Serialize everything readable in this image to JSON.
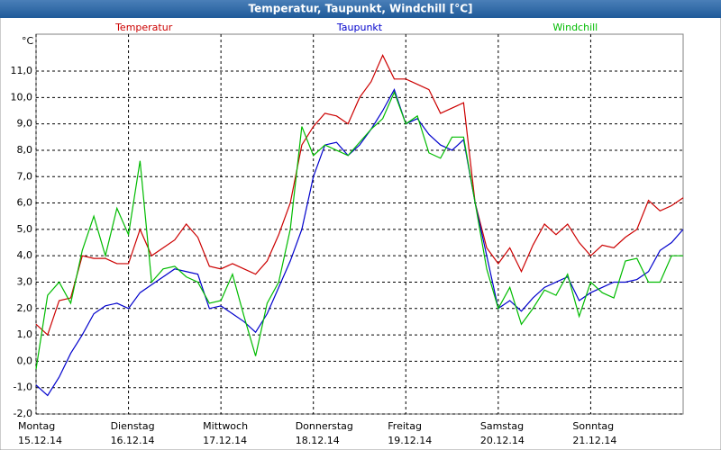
{
  "chart_data": {
    "type": "line",
    "title": "Temperatur, Taupunkt, Windchill [°C]",
    "y_label": "°C",
    "x": [
      0,
      3,
      6,
      9,
      12,
      15,
      18,
      21,
      24,
      27,
      30,
      33,
      36,
      39,
      42,
      45,
      48,
      51,
      54,
      57,
      60,
      63,
      66,
      69,
      72,
      75,
      78,
      81,
      84,
      87,
      90,
      93,
      96,
      99,
      102,
      105,
      108,
      111,
      114,
      117,
      120,
      123,
      126,
      129,
      132,
      135,
      138,
      141,
      144,
      147,
      150,
      153,
      156,
      159,
      162,
      165,
      168
    ],
    "xlim": [
      0,
      168
    ],
    "xticks": [
      {
        "value": 0,
        "label": "Montag",
        "date": "15.12.14"
      },
      {
        "value": 24,
        "label": "Dienstag",
        "date": "16.12.14"
      },
      {
        "value": 48,
        "label": "Mittwoch",
        "date": "17.12.14"
      },
      {
        "value": 72,
        "label": "Donnerstag",
        "date": "18.12.14"
      },
      {
        "value": 96,
        "label": "Freitag",
        "date": "19.12.14"
      },
      {
        "value": 120,
        "label": "Samstag",
        "date": "20.12.14"
      },
      {
        "value": 144,
        "label": "Sonntag",
        "date": "21.12.14"
      }
    ],
    "ylim": [
      -2,
      12.4
    ],
    "yticks": [
      {
        "value": -2,
        "label": "-2,0"
      },
      {
        "value": -1,
        "label": "-1,0"
      },
      {
        "value": 0,
        "label": "0,0"
      },
      {
        "value": 1,
        "label": "1,0"
      },
      {
        "value": 2,
        "label": "2,0"
      },
      {
        "value": 3,
        "label": "3,0"
      },
      {
        "value": 4,
        "label": "4,0"
      },
      {
        "value": 5,
        "label": "5,0"
      },
      {
        "value": 6,
        "label": "6,0"
      },
      {
        "value": 7,
        "label": "7,0"
      },
      {
        "value": 8,
        "label": "8,0"
      },
      {
        "value": 9,
        "label": "9,0"
      },
      {
        "value": 10,
        "label": "10,0"
      },
      {
        "value": 11,
        "label": "11,0"
      }
    ],
    "grid": true,
    "series": [
      {
        "name": "Temperatur",
        "color": "#cc0000",
        "values": [
          1.4,
          1.0,
          2.3,
          2.4,
          4.0,
          3.9,
          3.9,
          3.7,
          3.7,
          5.0,
          4.0,
          4.3,
          4.6,
          5.2,
          4.7,
          3.6,
          3.5,
          3.7,
          3.5,
          3.3,
          3.8,
          4.8,
          6.0,
          8.2,
          8.9,
          9.4,
          9.3,
          9.0,
          10.0,
          10.6,
          11.6,
          10.7,
          10.7,
          10.5,
          10.3,
          9.4,
          9.6,
          9.8,
          6.0,
          4.3,
          3.7,
          4.3,
          3.4,
          4.4,
          5.2,
          4.8,
          5.2,
          4.5,
          4.0,
          4.4,
          4.3,
          4.7,
          5.0,
          6.1,
          5.7,
          5.9,
          6.2
        ]
      },
      {
        "name": "Taupunkt",
        "color": "#0000cc",
        "values": [
          -0.9,
          -1.3,
          -0.6,
          0.3,
          1.0,
          1.8,
          2.1,
          2.2,
          2.0,
          2.6,
          2.9,
          3.2,
          3.5,
          3.4,
          3.3,
          2.0,
          2.1,
          1.8,
          1.5,
          1.1,
          1.8,
          2.8,
          3.8,
          5.0,
          7.0,
          8.2,
          8.3,
          7.8,
          8.2,
          8.8,
          9.5,
          10.3,
          9.0,
          9.2,
          8.6,
          8.2,
          8.0,
          8.4,
          6.0,
          4.0,
          2.0,
          2.3,
          1.9,
          2.4,
          2.8,
          3.0,
          3.2,
          2.3,
          2.6,
          2.8,
          3.0,
          3.0,
          3.1,
          3.4,
          4.2,
          4.5,
          5.0
        ]
      },
      {
        "name": "Windchill",
        "color": "#00bb00",
        "values": [
          -0.3,
          2.5,
          3.0,
          2.2,
          4.2,
          5.5,
          4.0,
          5.8,
          4.8,
          7.6,
          3.0,
          3.5,
          3.6,
          3.2,
          3.0,
          2.2,
          2.3,
          3.3,
          1.7,
          0.2,
          2.2,
          3.0,
          5.0,
          8.9,
          7.8,
          8.2,
          8.0,
          7.8,
          8.3,
          8.8,
          9.2,
          10.2,
          9.0,
          9.3,
          7.9,
          7.7,
          8.5,
          8.5,
          6.0,
          3.5,
          2.0,
          2.8,
          1.4,
          2.0,
          2.7,
          2.5,
          3.3,
          1.7,
          3.0,
          2.6,
          2.4,
          3.8,
          3.9,
          3.0,
          3.0,
          4.0,
          4.0
        ]
      }
    ]
  }
}
